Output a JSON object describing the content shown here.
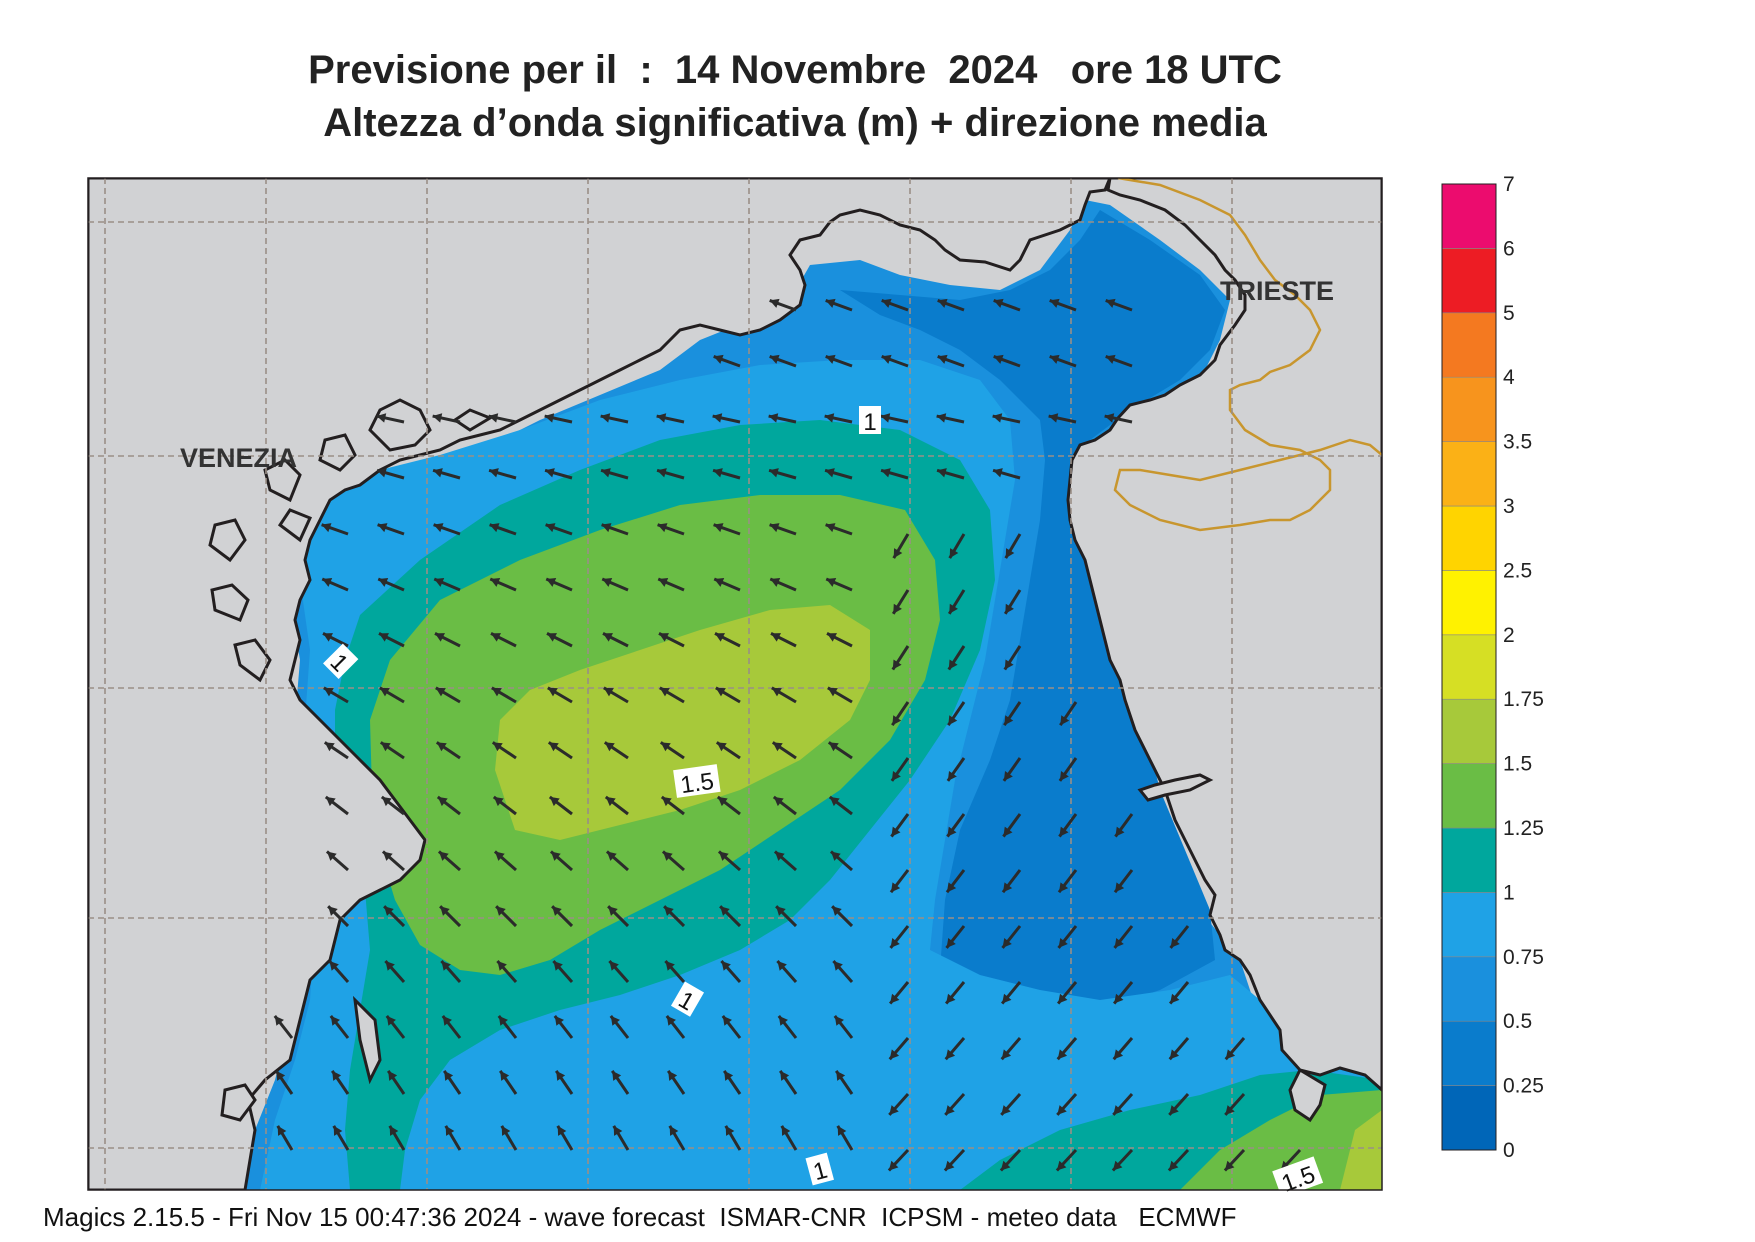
{
  "title": {
    "line1": "Previsione per il  :  14 Novembre  2024   ore 18 UTC",
    "line2": "Altezza d’onda significativa (m) + direzione media"
  },
  "cities": [
    {
      "name": "VENEZIA"
    },
    {
      "name": "TRIESTE"
    }
  ],
  "contour_labels": [
    "1",
    "1",
    "1.5",
    "1",
    "1",
    "1.5"
  ],
  "colorbar": {
    "levels": [
      "0",
      "0.25",
      "0.5",
      "0.75",
      "1",
      "1.25",
      "1.5",
      "1.75",
      "2",
      "2.5",
      "3",
      "3.5",
      "4",
      "5",
      "6",
      "7"
    ],
    "colors": [
      "#0066b8",
      "#0a7ccc",
      "#1a90dd",
      "#1fa2e6",
      "#00a79d",
      "#6abd45",
      "#a7c93a",
      "#d6df24",
      "#fff200",
      "#ffd400",
      "#fbb116",
      "#f7941d",
      "#f47920",
      "#ed1c24",
      "#ec0c6e"
    ]
  },
  "map_colors": {
    "land": "#d1d2d4",
    "coast": "#231f20",
    "border": "#c8962e",
    "grid": "#9a8f86",
    "arrow": "#2b2b2b"
  },
  "footer": "Magics 2.15.5 - Fri Nov 15 00:47:36 2024 - wave forecast  ISMAR-CNR  ICPSM - meteo data   ECMWF"
}
